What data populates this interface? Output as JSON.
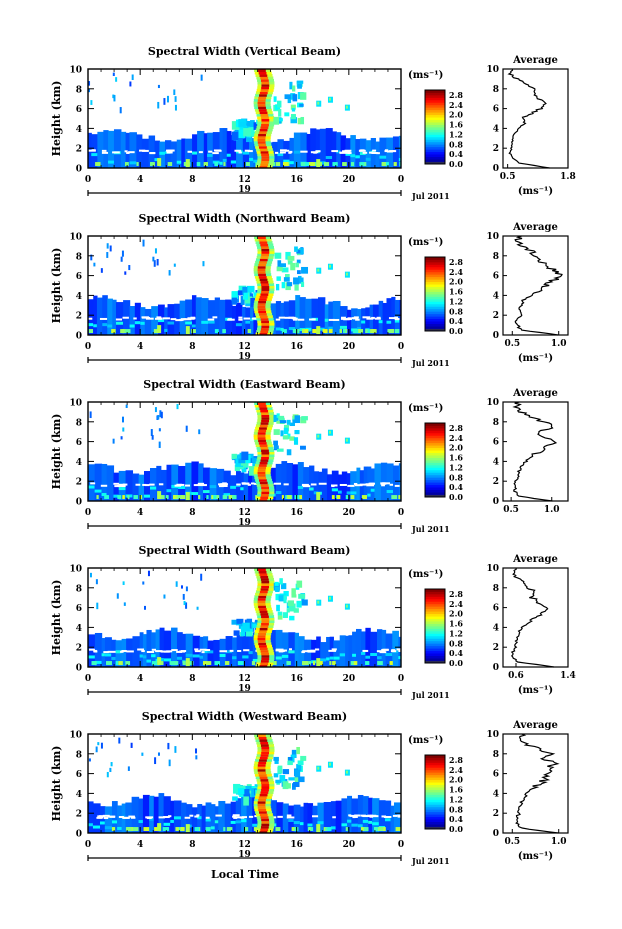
{
  "figure": {
    "bottom_label": "Local Time"
  },
  "chart_data": [
    {
      "type": "heatmap",
      "title": "Spectral Width (Vertical Beam)",
      "ylabel": "Height (km)",
      "xlim": [
        0,
        24
      ],
      "ylim": [
        0,
        10
      ],
      "x_ticks": [
        "0",
        "4",
        "8",
        "12",
        "16",
        "20",
        "0"
      ],
      "y_ticks": [
        "0",
        "2",
        "4",
        "6",
        "8",
        "10"
      ],
      "date_day": "19",
      "date_month": "Jul 2011",
      "colorbar": {
        "unit": "(ms⁻¹)",
        "ticks": [
          "0.0",
          "0.4",
          "0.8",
          "1.2",
          "1.6",
          "2.0",
          "2.4",
          "2.8"
        ],
        "range": [
          0,
          3.0
        ]
      },
      "profile": {
        "title": "Average",
        "xlabel": "(ms⁻¹)",
        "xlim": [
          0.4,
          1.8
        ],
        "x_ticks": [
          "0.5",
          "1.8"
        ],
        "y_ticks": [
          "0",
          "2",
          "4",
          "6",
          "8",
          "10"
        ],
        "heights": [
          0,
          0.5,
          1,
          1.5,
          2,
          2.5,
          3,
          3.5,
          4,
          4.5,
          5,
          5.5,
          6,
          6.5,
          7,
          7.5,
          8,
          8.5,
          9,
          9.5,
          10
        ],
        "values": [
          1.4,
          0.75,
          0.6,
          0.55,
          0.58,
          0.6,
          0.62,
          0.65,
          0.75,
          0.85,
          0.8,
          1.0,
          1.2,
          1.35,
          1.15,
          1.05,
          1.1,
          0.9,
          0.7,
          0.55,
          0.6
        ]
      }
    },
    {
      "type": "heatmap",
      "title": "Spectral Width (Northward Beam)",
      "ylabel": "Height (km)",
      "xlim": [
        0,
        24
      ],
      "ylim": [
        0,
        10
      ],
      "x_ticks": [
        "0",
        "4",
        "8",
        "12",
        "16",
        "20",
        "0"
      ],
      "y_ticks": [
        "0",
        "2",
        "4",
        "6",
        "8",
        "10"
      ],
      "date_day": "19",
      "date_month": "Jul 2011",
      "colorbar": {
        "unit": "(ms⁻¹)",
        "ticks": [
          "0.0",
          "0.4",
          "0.8",
          "1.2",
          "1.6",
          "2.0",
          "2.4",
          "2.8"
        ],
        "range": [
          0,
          3.0
        ]
      },
      "profile": {
        "title": "Average",
        "xlabel": "(ms⁻¹)",
        "xlim": [
          0.4,
          1.1
        ],
        "x_ticks": [
          "0.5",
          "1.0"
        ],
        "y_ticks": [
          "0",
          "2",
          "4",
          "6",
          "8",
          "10"
        ],
        "heights": [
          0,
          0.5,
          1,
          1.5,
          2,
          2.5,
          3,
          3.5,
          4,
          4.5,
          5,
          5.5,
          6,
          6.5,
          7,
          7.5,
          8,
          8.5,
          9,
          9.5,
          10
        ],
        "values": [
          1.0,
          0.6,
          0.55,
          0.55,
          0.6,
          0.58,
          0.6,
          0.62,
          0.7,
          0.8,
          0.85,
          0.95,
          1.05,
          0.95,
          0.85,
          0.8,
          0.75,
          0.7,
          0.6,
          0.55,
          0.6
        ]
      }
    },
    {
      "type": "heatmap",
      "title": "Spectral Width (Eastward Beam)",
      "ylabel": "Height (km)",
      "xlim": [
        0,
        24
      ],
      "ylim": [
        0,
        10
      ],
      "x_ticks": [
        "0",
        "4",
        "8",
        "12",
        "16",
        "20",
        "0"
      ],
      "y_ticks": [
        "0",
        "2",
        "4",
        "6",
        "8",
        "10"
      ],
      "date_day": "19",
      "date_month": "Jul 2011",
      "colorbar": {
        "unit": "(ms⁻¹)",
        "ticks": [
          "0.0",
          "0.4",
          "0.8",
          "1.2",
          "1.6",
          "2.0",
          "2.4",
          "2.8"
        ],
        "range": [
          0,
          3.0
        ]
      },
      "profile": {
        "title": "Average",
        "xlabel": "",
        "xlim": [
          0.4,
          1.2
        ],
        "x_ticks": [
          "0.5",
          "1.0"
        ],
        "y_ticks": [
          "0",
          "2",
          "4",
          "6",
          "8",
          "10"
        ],
        "heights": [
          0,
          0.5,
          1,
          1.5,
          2,
          2.5,
          3,
          3.5,
          4,
          4.5,
          5,
          5.5,
          6,
          6.5,
          7,
          7.5,
          8,
          8.5,
          9,
          9.5,
          10
        ],
        "values": [
          1.0,
          0.58,
          0.55,
          0.55,
          0.56,
          0.58,
          0.6,
          0.62,
          0.68,
          0.75,
          0.85,
          0.95,
          1.05,
          0.9,
          0.85,
          1.0,
          0.9,
          0.75,
          0.6,
          0.55,
          0.6
        ]
      }
    },
    {
      "type": "heatmap",
      "title": "Spectral Width (Southward Beam)",
      "ylabel": "Height (km)",
      "xlim": [
        0,
        24
      ],
      "ylim": [
        0,
        10
      ],
      "x_ticks": [
        "0",
        "4",
        "8",
        "12",
        "16",
        "20",
        "0"
      ],
      "y_ticks": [
        "0",
        "2",
        "4",
        "6",
        "8",
        "10"
      ],
      "date_day": "19",
      "date_month": "Jul 2011",
      "colorbar": {
        "unit": "(ms⁻¹)",
        "ticks": [
          "0.0",
          "0.4",
          "0.8",
          "1.2",
          "1.6",
          "2.0",
          "2.4",
          "2.8"
        ],
        "range": [
          0,
          3.0
        ]
      },
      "profile": {
        "title": "Average",
        "xlabel": "(ms⁻¹)",
        "xlim": [
          0.4,
          1.4
        ],
        "x_ticks": [
          "0.6",
          "1.4"
        ],
        "y_ticks": [
          "0",
          "2",
          "4",
          "6",
          "8",
          "10"
        ],
        "heights": [
          0,
          0.5,
          1,
          1.5,
          2,
          2.5,
          3,
          3.5,
          4,
          4.5,
          5,
          5.5,
          6,
          6.5,
          7,
          7.5,
          8,
          8.5,
          9,
          9.5,
          10
        ],
        "values": [
          1.2,
          0.62,
          0.55,
          0.55,
          0.6,
          0.6,
          0.62,
          0.64,
          0.7,
          0.78,
          0.9,
          1.0,
          1.1,
          0.95,
          0.85,
          0.9,
          0.8,
          0.7,
          0.62,
          0.58,
          0.6
        ]
      }
    },
    {
      "type": "heatmap",
      "title": "Spectral Width (Westward Beam)",
      "ylabel": "Height (km)",
      "xlim": [
        0,
        24
      ],
      "ylim": [
        0,
        10
      ],
      "x_ticks": [
        "0",
        "4",
        "8",
        "12",
        "16",
        "20",
        "0"
      ],
      "y_ticks": [
        "0",
        "2",
        "4",
        "6",
        "8",
        "10"
      ],
      "date_day": "19",
      "date_month": "Jul 2011",
      "colorbar": {
        "unit": "(ms⁻¹)",
        "ticks": [
          "0.0",
          "0.4",
          "0.8",
          "1.2",
          "1.6",
          "2.0",
          "2.4",
          "2.8"
        ],
        "range": [
          0,
          3.0
        ]
      },
      "profile": {
        "title": "Average",
        "xlabel": "(ms⁻¹)",
        "xlim": [
          0.4,
          1.1
        ],
        "x_ticks": [
          "0.5",
          "1.0"
        ],
        "y_ticks": [
          "0",
          "2",
          "4",
          "6",
          "8",
          "10"
        ],
        "heights": [
          0,
          0.5,
          1,
          1.5,
          2,
          2.5,
          3,
          3.5,
          4,
          4.5,
          5,
          5.5,
          6,
          6.5,
          7,
          7.5,
          8,
          8.5,
          9,
          9.5,
          10
        ],
        "values": [
          1.0,
          0.6,
          0.55,
          0.55,
          0.57,
          0.58,
          0.6,
          0.62,
          0.66,
          0.72,
          0.8,
          0.85,
          0.9,
          0.88,
          0.95,
          0.85,
          0.9,
          0.8,
          0.65,
          0.55,
          0.6
        ]
      }
    }
  ]
}
